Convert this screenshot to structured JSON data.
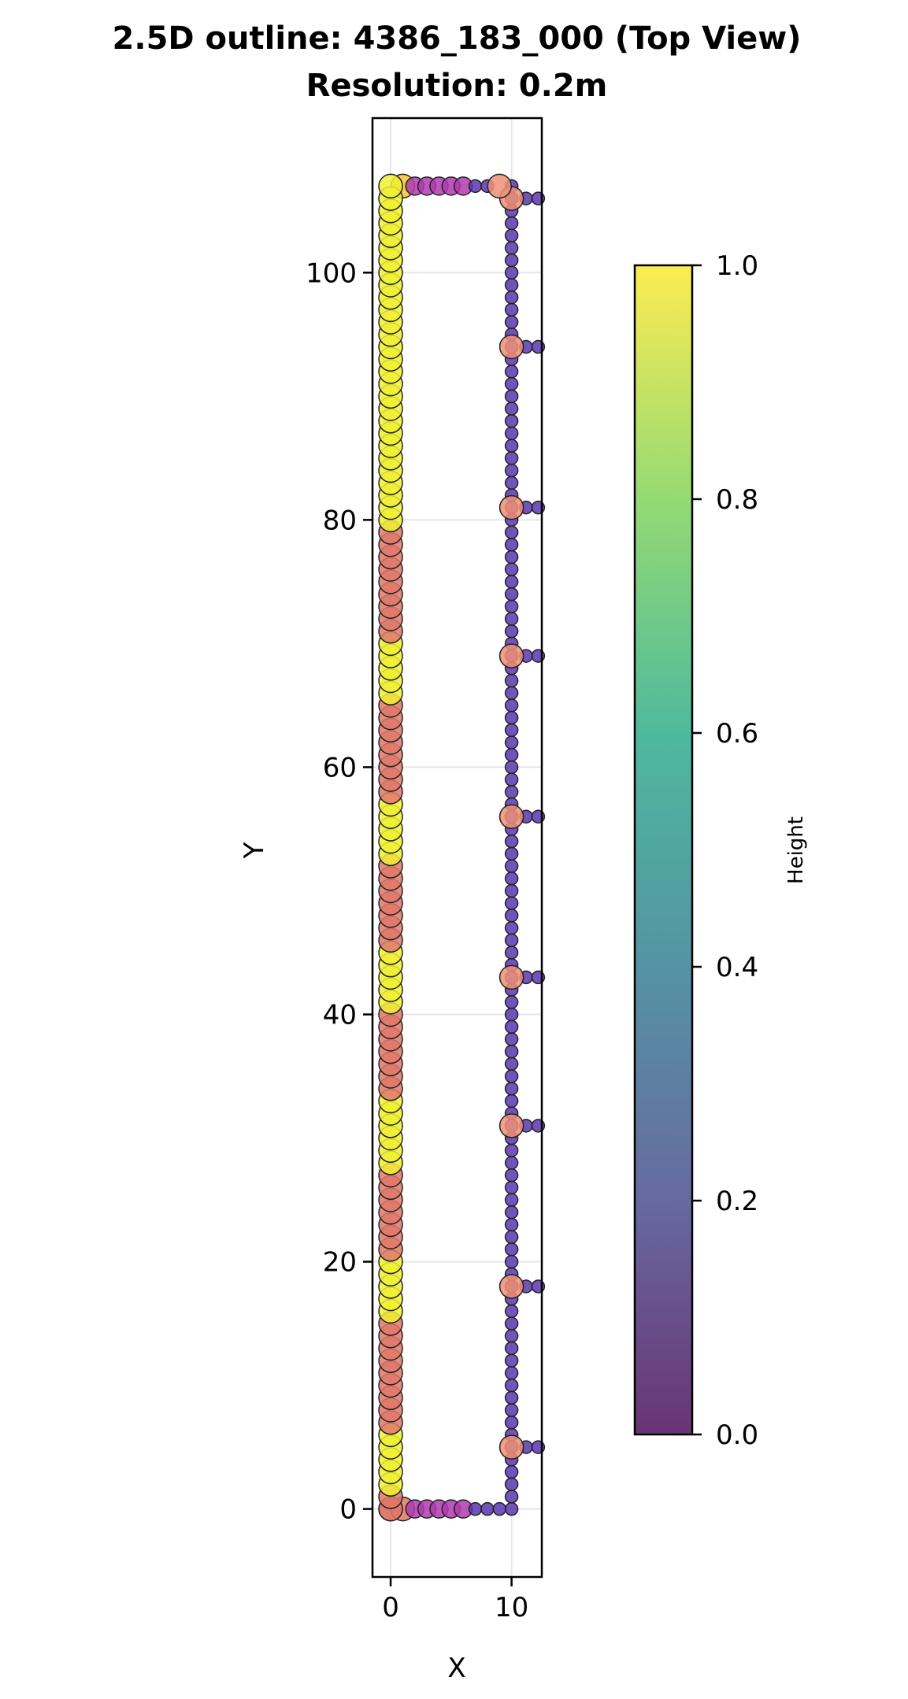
{
  "chart_data": {
    "type": "scatter",
    "title": "2.5D outline: 4386_183_000 (Top View)",
    "subtitle": "Resolution: 0.2m",
    "xlabel": "X",
    "ylabel": "Y",
    "xlim": [
      -1.5,
      12.5
    ],
    "ylim": [
      -5.5,
      112.5
    ],
    "x_ticks": [
      0,
      10
    ],
    "y_ticks": [
      0,
      20,
      40,
      60,
      80,
      100
    ],
    "grid": true,
    "colorbar": {
      "label": "Height",
      "range": [
        0.0,
        1.0
      ],
      "ticks": [
        "0.0",
        "0.2",
        "0.4",
        "0.6",
        "0.8",
        "1.0"
      ],
      "colormap": "viridis"
    },
    "marker_colors": {
      "yellow": "#f0f032",
      "salmon": "#e0786a",
      "orange": "#ee9075",
      "magenta": "#b03ab0",
      "purple": "#5b35b0",
      "gold": "#f2c531"
    },
    "left_wall": {
      "x": 0,
      "y_start": 0,
      "y_end": 107,
      "yellow_ranges": [
        [
          2,
          6
        ],
        [
          16,
          20
        ],
        [
          28,
          33
        ],
        [
          41,
          45
        ],
        [
          53,
          57
        ],
        [
          66,
          70
        ],
        [
          80,
          107
        ]
      ]
    },
    "right_wall": {
      "x": 10,
      "y_start": 0,
      "y_end": 107,
      "stub_y": [
        5,
        18,
        31,
        43,
        56,
        69,
        81,
        94,
        106
      ],
      "stub_x": [
        11.2,
        12.2
      ]
    },
    "bottom_edge": {
      "y": 0,
      "points": [
        {
          "x": 0,
          "color": "salmon",
          "size": "large"
        },
        {
          "x": 1,
          "color": "salmon",
          "size": "large"
        },
        {
          "x": 2,
          "color": "magenta",
          "size": "medium"
        },
        {
          "x": 3,
          "color": "magenta",
          "size": "medium"
        },
        {
          "x": 4,
          "color": "magenta",
          "size": "medium"
        },
        {
          "x": 5,
          "color": "magenta",
          "size": "medium"
        },
        {
          "x": 6,
          "color": "magenta",
          "size": "medium"
        },
        {
          "x": 7,
          "color": "purple",
          "size": "small"
        },
        {
          "x": 8,
          "color": "purple",
          "size": "small"
        },
        {
          "x": 9,
          "color": "purple",
          "size": "small"
        }
      ]
    },
    "top_edge": {
      "y": 107,
      "points": [
        {
          "x": 1,
          "color": "gold",
          "size": "large"
        },
        {
          "x": 2,
          "color": "magenta",
          "size": "medium"
        },
        {
          "x": 3,
          "color": "magenta",
          "size": "medium"
        },
        {
          "x": 4,
          "color": "magenta",
          "size": "medium"
        },
        {
          "x": 5,
          "color": "magenta",
          "size": "medium"
        },
        {
          "x": 6,
          "color": "magenta",
          "size": "medium"
        },
        {
          "x": 7,
          "color": "purple",
          "size": "small"
        },
        {
          "x": 8,
          "color": "purple",
          "size": "small"
        },
        {
          "x": 9,
          "color": "orange",
          "size": "large"
        }
      ]
    }
  }
}
